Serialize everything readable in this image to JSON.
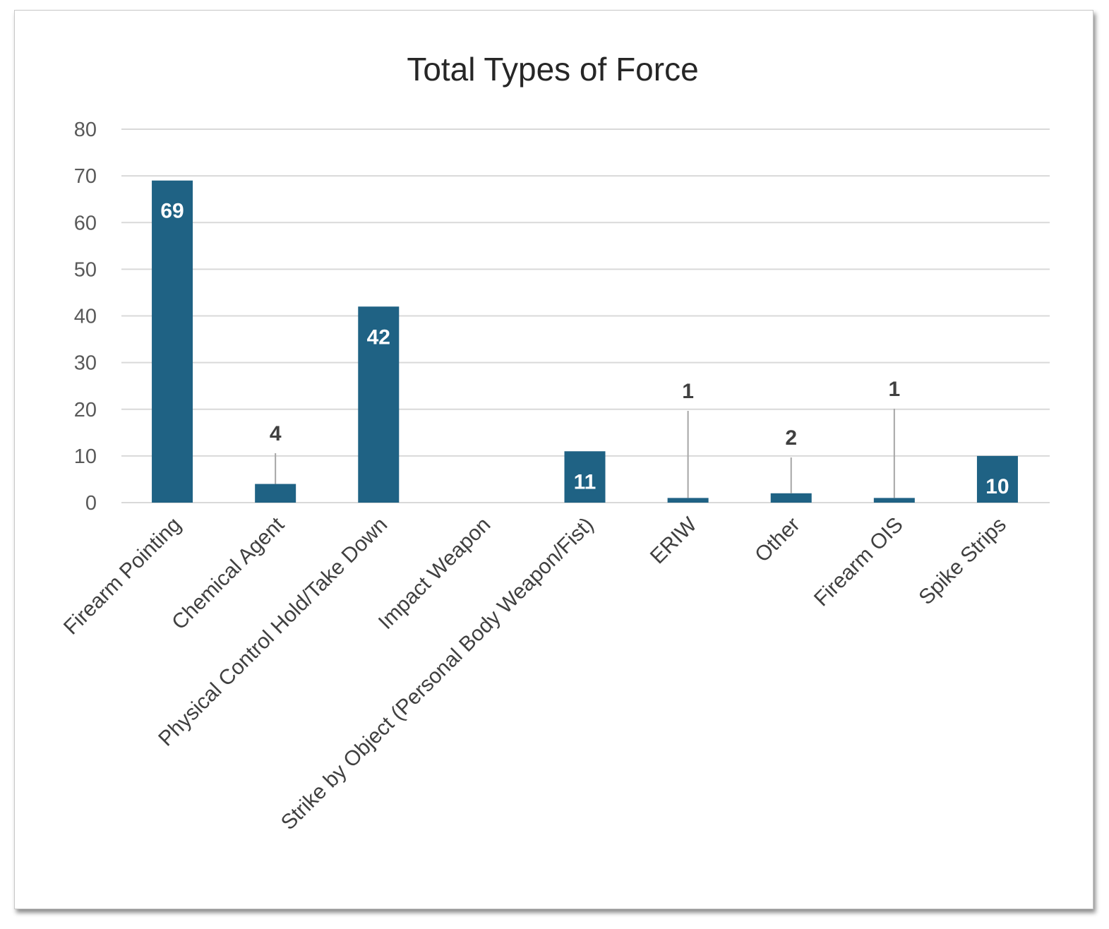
{
  "chart_data": {
    "type": "bar",
    "title": "Total Types of Force",
    "xlabel": "",
    "ylabel": "",
    "categories": [
      "Firearm Pointing",
      "Chemical Agent",
      "Physical Control Hold/Take Down",
      "Impact Weapon",
      "Strike by Object (Personal Body Weapon/Fist)",
      "ERIW",
      "Other",
      "Firearm OIS",
      "Spike Strips"
    ],
    "values": [
      69,
      4,
      42,
      0,
      11,
      1,
      2,
      1,
      10
    ],
    "data_labels": [
      "69",
      "4",
      "42",
      "",
      "11",
      "1",
      "2",
      "1",
      "10"
    ],
    "ylim": [
      0,
      80
    ],
    "yticks": [
      "0",
      "10",
      "20",
      "30",
      "40",
      "50",
      "60",
      "70",
      "80"
    ],
    "grid": true,
    "legend": "none",
    "bar_color": "#1f6284"
  }
}
